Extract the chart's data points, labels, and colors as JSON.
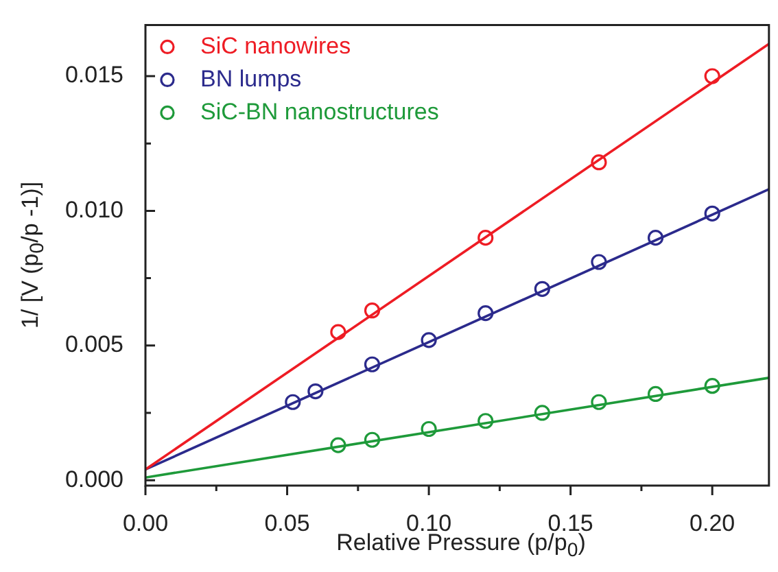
{
  "chart_data": {
    "type": "scatter",
    "xlabel": "Relative Pressure (p/p$_{0}$)",
    "ylabel": "1/ [V (p$_{0}$/p -1)]",
    "xlim": [
      0,
      0.22
    ],
    "ylim": [
      -0.0002,
      0.0169
    ],
    "xticks": [
      {
        "value": 0,
        "label": "0.00"
      },
      {
        "value": 0.025,
        "label": null
      },
      0.05,
      {
        "value": 0.075,
        "label": null
      },
      {
        "value": 0.1,
        "label": "0.10"
      },
      {
        "value": 0.125,
        "label": null
      },
      0.15,
      {
        "value": 0.175,
        "label": null
      },
      {
        "value": 0.2,
        "label": "0.20"
      }
    ],
    "yticks": [
      {
        "value": 0,
        "label": "0.000"
      },
      {
        "value": 0.0025,
        "label": null
      },
      0.005,
      {
        "value": 0.0075,
        "label": null
      },
      {
        "value": 0.01,
        "label": "0.010"
      },
      {
        "value": 0.0125,
        "label": null
      },
      0.015
    ],
    "legend": "top left",
    "marker": "circle",
    "series": [
      {
        "name": "SiC nanowires",
        "color": "#ee1c24",
        "x": [
          0.068,
          0.08,
          0.12,
          0.16,
          0.2
        ],
        "values": [
          0.0055,
          0.0063,
          0.009,
          0.0118,
          0.015
        ]
      },
      {
        "name": "BN lumps",
        "color": "#2b2a8c",
        "x": [
          0.052,
          0.06,
          0.08,
          0.1,
          0.12,
          0.14,
          0.16,
          0.18,
          0.2
        ],
        "values": [
          0.0029,
          0.0033,
          0.0043,
          0.0052,
          0.0062,
          0.0071,
          0.0081,
          0.009,
          0.0099
        ]
      },
      {
        "name": "SiC-BN nanostructures",
        "color": "#1e9a3a",
        "x": [
          0.068,
          0.08,
          0.1,
          0.12,
          0.14,
          0.16,
          0.18,
          0.2
        ],
        "values": [
          0.0013,
          0.0015,
          0.0019,
          0.0022,
          0.0025,
          0.0029,
          0.0032,
          0.0035
        ]
      },
      {
        "type": "line",
        "marker": "none",
        "color": "#ee1c24",
        "x": [
          0,
          0.22
        ],
        "values": [
          0.0004,
          0.0162
        ]
      },
      {
        "type": "line",
        "marker": "none",
        "color": "#2b2a8c",
        "x": [
          0,
          0.22
        ],
        "values": [
          0.0004,
          0.0108
        ]
      },
      {
        "type": "line",
        "marker": "none",
        "color": "#1e9a3a",
        "x": [
          0,
          0.22
        ],
        "values": [
          0.0001,
          0.0038
        ]
      }
    ]
  }
}
